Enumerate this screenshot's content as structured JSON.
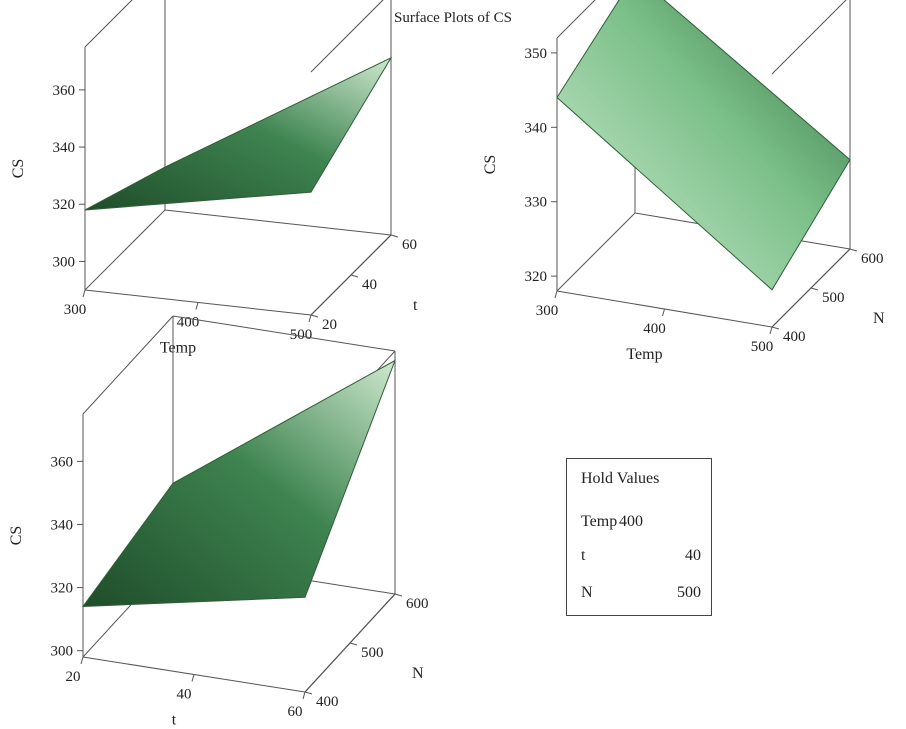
{
  "title": "Surface Plots of CS",
  "chart_data": [
    {
      "type": "surface",
      "title": "",
      "x": {
        "label": "Temp",
        "ticks": [
          300,
          400,
          500
        ],
        "range": [
          300,
          500
        ]
      },
      "y": {
        "label": "t",
        "ticks": [
          20,
          40,
          60
        ],
        "range": [
          20,
          60
        ]
      },
      "z": {
        "label": "CS",
        "ticks": [
          300,
          320,
          340,
          360
        ],
        "range": [
          290,
          375
        ]
      },
      "surface": {
        "x_values": [
          300,
          500
        ],
        "y_values": [
          20,
          60
        ],
        "cs_grid": [
          [
            318,
            333
          ],
          [
            305,
            352
          ]
        ]
      },
      "colors": {
        "dark": "#1f4d2a",
        "mid": "#3e8450",
        "light": "#cfe9cf"
      }
    },
    {
      "type": "surface",
      "title": "",
      "x": {
        "label": "Temp",
        "ticks": [
          300,
          400,
          500
        ],
        "range": [
          300,
          500
        ]
      },
      "y": {
        "label": "N",
        "ticks": [
          400,
          500,
          600
        ],
        "range": [
          400,
          600
        ]
      },
      "z": {
        "label": "CS",
        "ticks": [
          320,
          330,
          340,
          350
        ],
        "range": [
          318,
          352
        ]
      },
      "surface": {
        "x_values": [
          300,
          500
        ],
        "y_values": [
          400,
          600
        ],
        "cs_grid": [
          [
            344,
            323
          ],
          [
            350,
            330
          ]
        ]
      },
      "colors": {
        "dark": "#2a6b38",
        "mid": "#7cc08a",
        "light": "#d5efd5"
      }
    },
    {
      "type": "surface",
      "title": "",
      "x": {
        "label": "t",
        "ticks": [
          20,
          40,
          60
        ],
        "range": [
          20,
          60
        ]
      },
      "y": {
        "label": "N",
        "ticks": [
          400,
          500,
          600
        ],
        "range": [
          400,
          600
        ]
      },
      "z": {
        "label": "CS",
        "ticks": [
          300,
          320,
          340,
          360
        ],
        "range": [
          298,
          375
        ]
      },
      "surface": {
        "x_values": [
          20,
          60
        ],
        "y_values": [
          400,
          600
        ],
        "cs_grid": [
          [
            314,
            328
          ],
          [
            322,
            372
          ]
        ]
      },
      "colors": {
        "dark": "#1f4d2a",
        "mid": "#3e8450",
        "light": "#cfe9cf"
      }
    }
  ],
  "hold_values": {
    "title": "Hold Values",
    "items": [
      {
        "name": "Temp",
        "value": "400"
      },
      {
        "name": "t",
        "value": "40"
      },
      {
        "name": "N",
        "value": "500"
      }
    ]
  }
}
